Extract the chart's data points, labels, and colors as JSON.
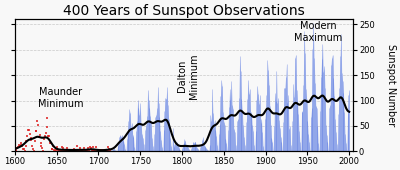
{
  "title": "400 Years of Sunspot Observations",
  "ylabel_right": "Sunspot Number",
  "xlim": [
    1600,
    2005
  ],
  "ylim": [
    0,
    260
  ],
  "yticks": [
    0,
    50,
    100,
    150,
    200,
    250
  ],
  "xticks": [
    1600,
    1650,
    1700,
    1750,
    1800,
    1850,
    1900,
    1950,
    2000
  ],
  "maunder_label": "Maunder\nMinimum",
  "maunder_x": 1655,
  "maunder_y": 105,
  "dalton_label": "Dalton\nMinimum",
  "dalton_x": 1807,
  "dalton_y": 148,
  "modern_label": "Modern\nMaximum",
  "modern_x": 1963,
  "modern_y": 235,
  "red_color": "#dd2222",
  "blue_color": "#4466dd",
  "blue_fill_color": "#aabbee",
  "black_smooth_color": "#000000",
  "background_color": "#f8f8f8",
  "title_fontsize": 10,
  "label_fontsize": 7,
  "annotation_fontsize": 7,
  "transition_year": 1715,
  "grid_color": "#aaaaaa",
  "grid_linestyle": "--"
}
